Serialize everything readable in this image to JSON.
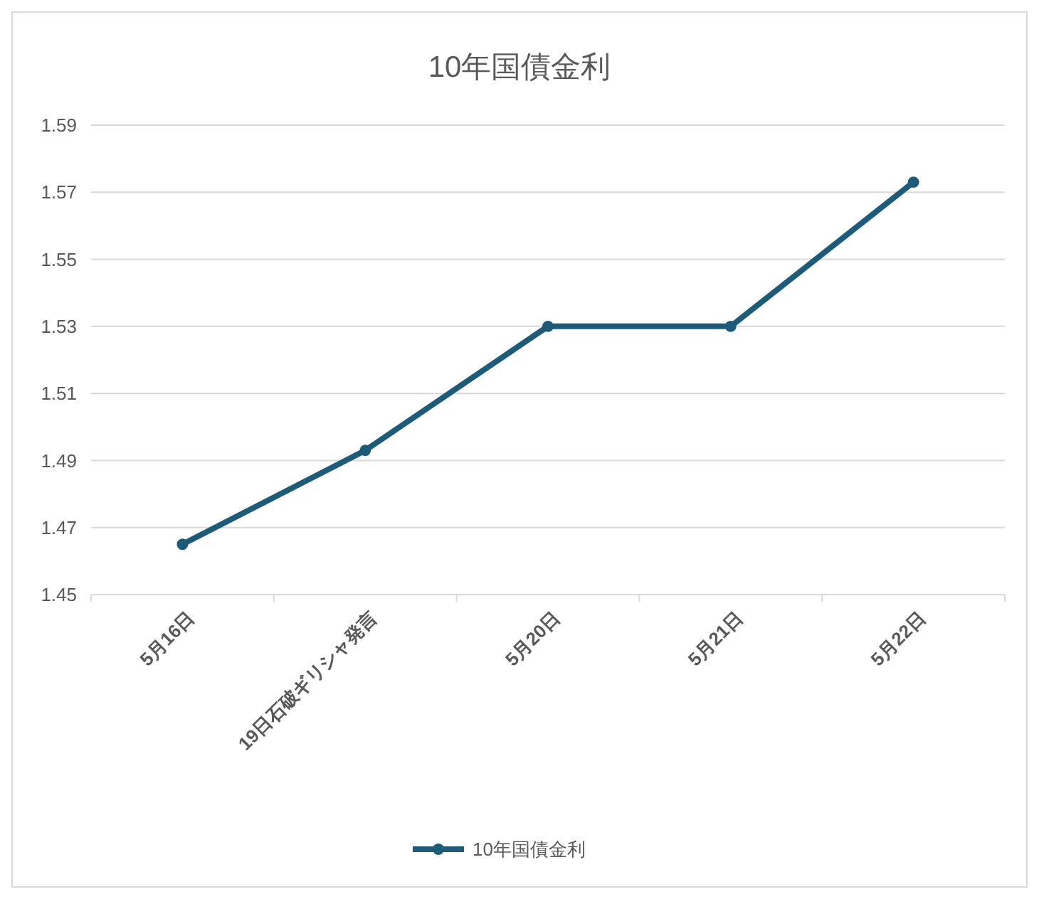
{
  "chart_data": {
    "type": "line",
    "title": "10年国債金利",
    "categories": [
      "5月16日",
      "19日石破ギリシャ発言",
      "5月20日",
      "5月21日",
      "5月22日"
    ],
    "series": [
      {
        "name": "10年国債金利",
        "color": "#1d5b79",
        "values": [
          1.465,
          1.493,
          1.53,
          1.53,
          1.573
        ]
      }
    ],
    "ylim": [
      1.45,
      1.59
    ],
    "yticks": [
      1.45,
      1.47,
      1.49,
      1.51,
      1.53,
      1.55,
      1.57,
      1.59
    ],
    "grid": "y",
    "legend": "bottom",
    "marker": "circle"
  }
}
